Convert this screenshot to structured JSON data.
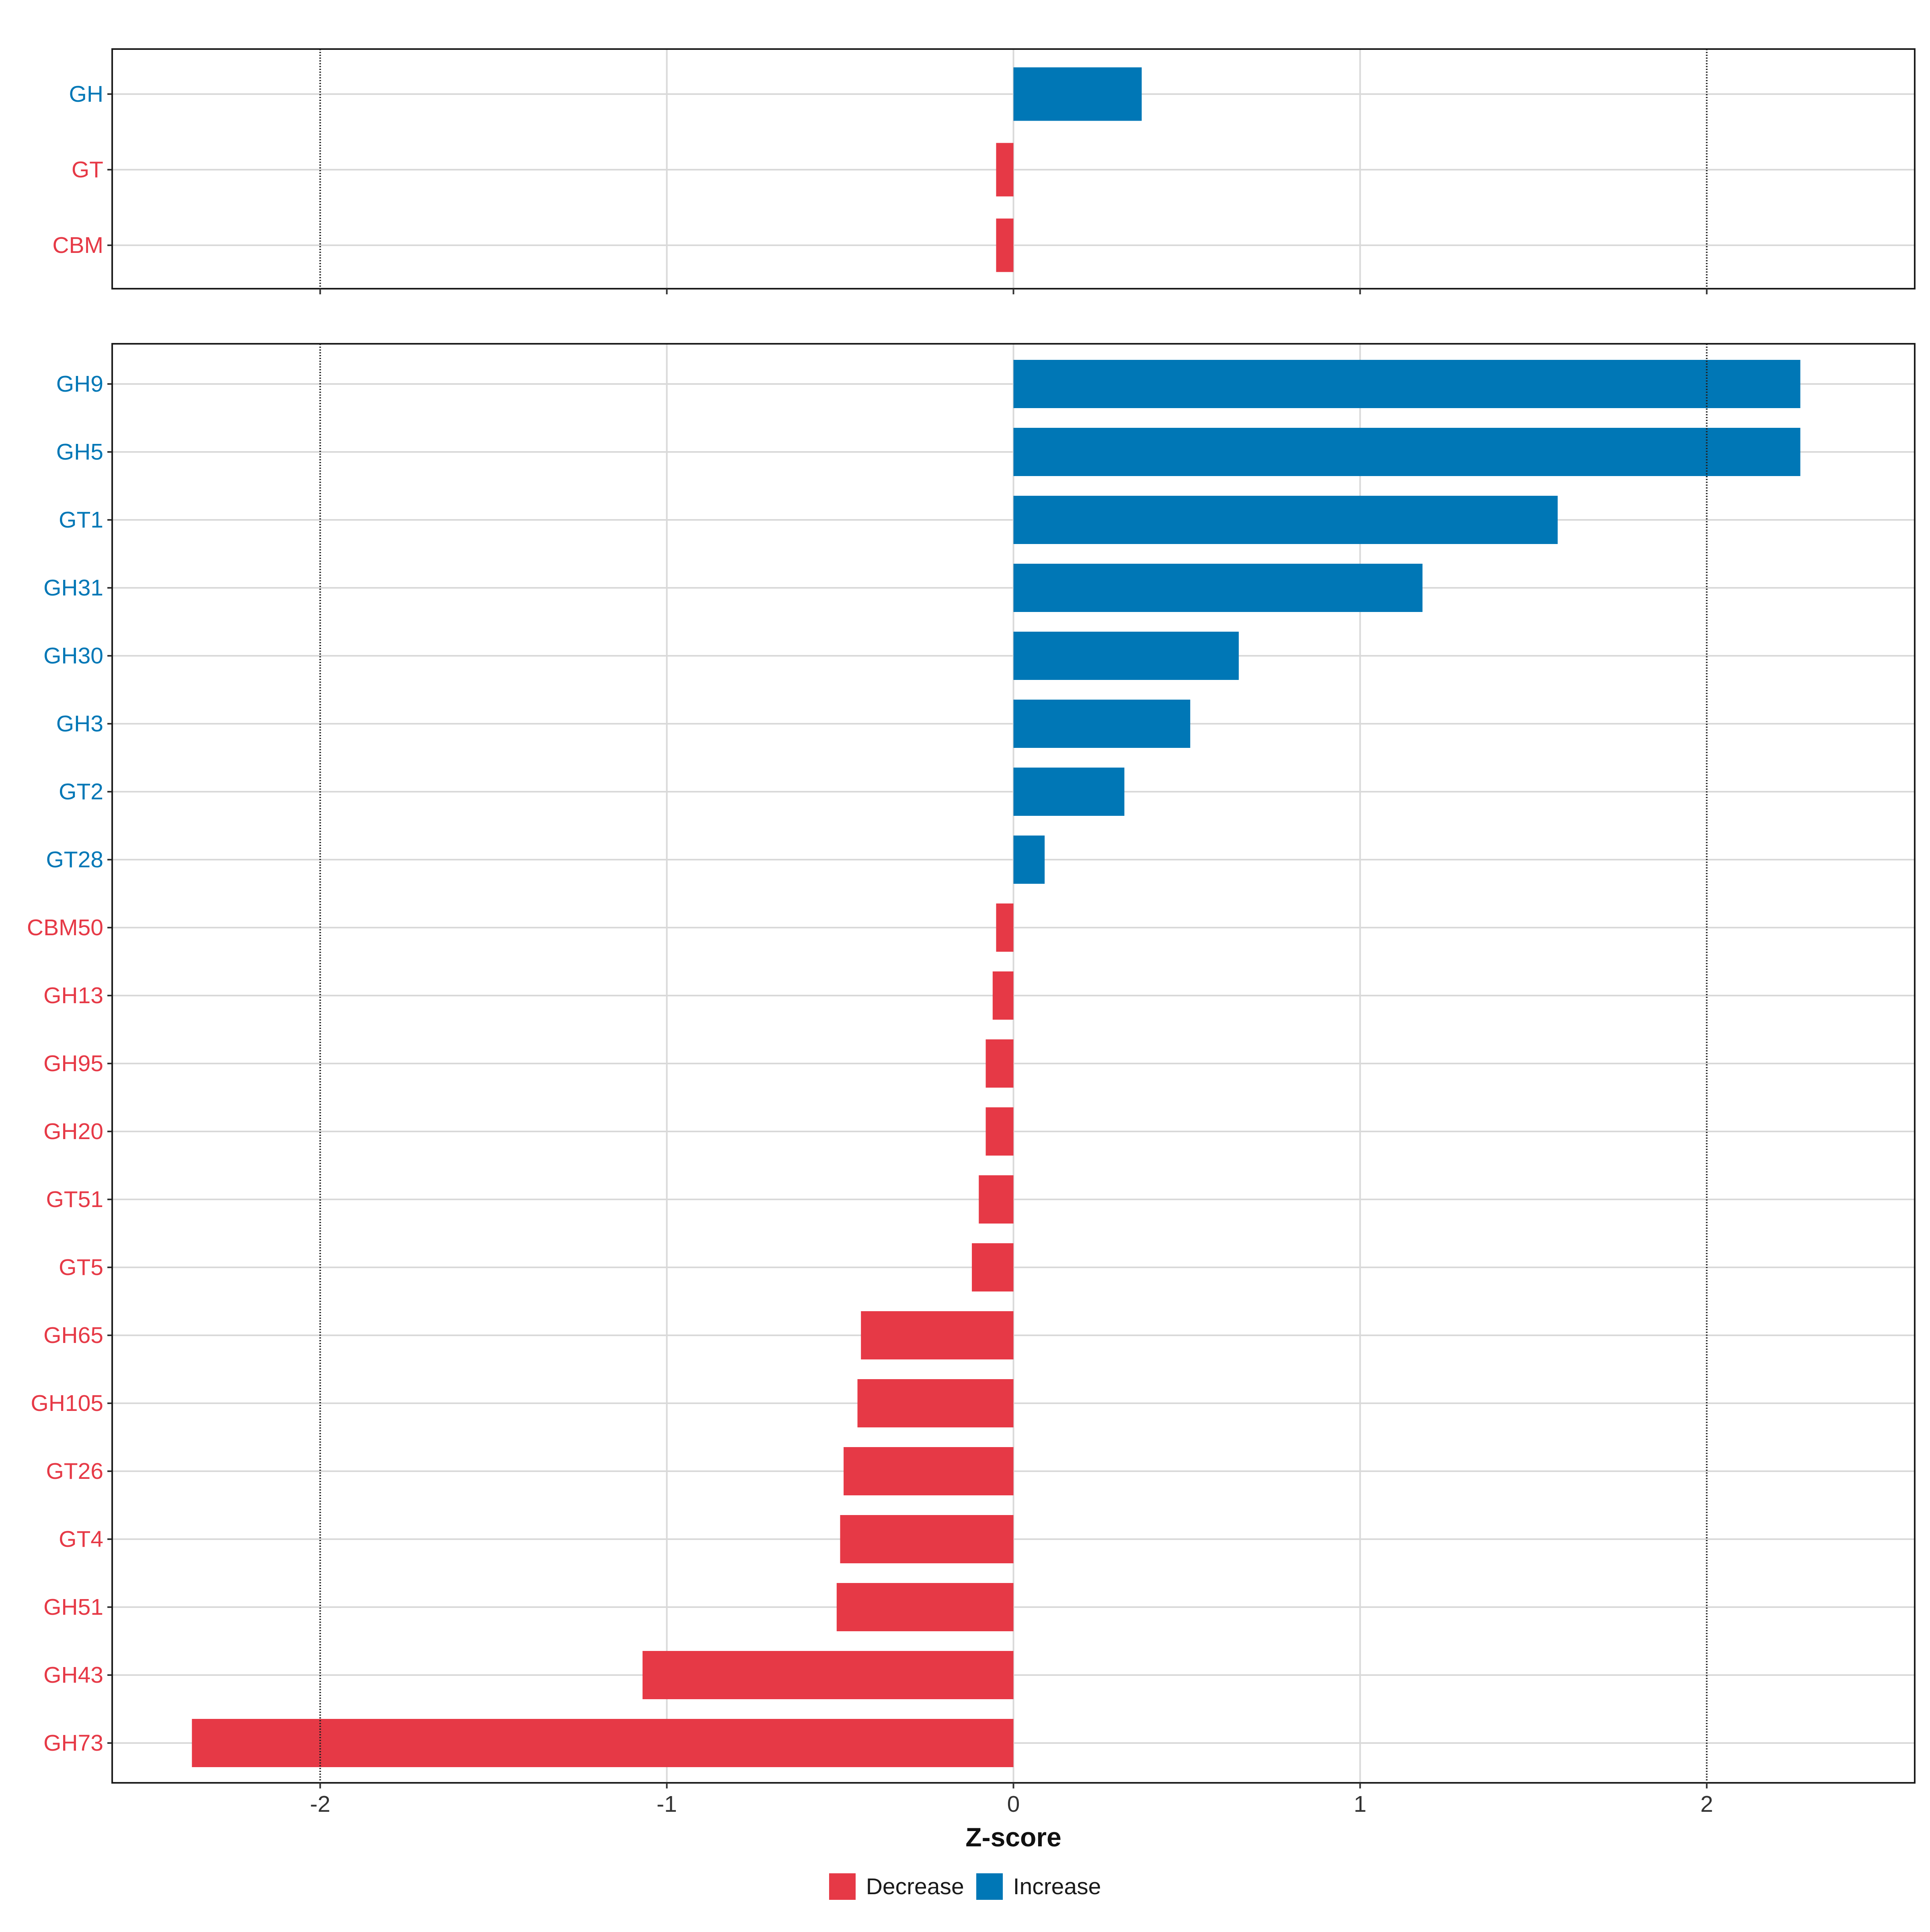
{
  "chart_data": {
    "type": "bar",
    "orientation": "horizontal",
    "xlabel": "Z-score",
    "xlim": [
      -2.6,
      2.6
    ],
    "x_ticks": [
      -2,
      -1,
      0,
      1,
      2
    ],
    "x_tick_labels": [
      "-2",
      "-1",
      "0",
      "1",
      "2"
    ],
    "reference_lines": [
      -2,
      2
    ],
    "grid": true,
    "legend": {
      "placement": "bottom",
      "entries": [
        {
          "label": "Decrease",
          "color": "#E63946"
        },
        {
          "label": "Increase",
          "color": "#0077B6"
        }
      ]
    },
    "panels": [
      {
        "name": "top",
        "bars": [
          {
            "category": "GH",
            "value": 0.37,
            "group": "Increase"
          },
          {
            "category": "GT",
            "value": -0.05,
            "group": "Decrease"
          },
          {
            "category": "CBM",
            "value": -0.05,
            "group": "Decrease"
          }
        ]
      },
      {
        "name": "bottom",
        "bars": [
          {
            "category": "GH9",
            "value": 2.27,
            "group": "Increase"
          },
          {
            "category": "GH5",
            "value": 2.27,
            "group": "Increase"
          },
          {
            "category": "GT1",
            "value": 1.57,
            "group": "Increase"
          },
          {
            "category": "GH31",
            "value": 1.18,
            "group": "Increase"
          },
          {
            "category": "GH30",
            "value": 0.65,
            "group": "Increase"
          },
          {
            "category": "GH3",
            "value": 0.51,
            "group": "Increase"
          },
          {
            "category": "GT2",
            "value": 0.32,
            "group": "Increase"
          },
          {
            "category": "GT28",
            "value": 0.09,
            "group": "Increase"
          },
          {
            "category": "CBM50",
            "value": -0.05,
            "group": "Decrease"
          },
          {
            "category": "GH13",
            "value": -0.06,
            "group": "Decrease"
          },
          {
            "category": "GH95",
            "value": -0.08,
            "group": "Decrease"
          },
          {
            "category": "GH20",
            "value": -0.08,
            "group": "Decrease"
          },
          {
            "category": "GT51",
            "value": -0.1,
            "group": "Decrease"
          },
          {
            "category": "GT5",
            "value": -0.12,
            "group": "Decrease"
          },
          {
            "category": "GH65",
            "value": -0.44,
            "group": "Decrease"
          },
          {
            "category": "GH105",
            "value": -0.45,
            "group": "Decrease"
          },
          {
            "category": "GT26",
            "value": -0.49,
            "group": "Decrease"
          },
          {
            "category": "GT4",
            "value": -0.5,
            "group": "Decrease"
          },
          {
            "category": "GH51",
            "value": -0.51,
            "group": "Decrease"
          },
          {
            "category": "GH43",
            "value": -1.07,
            "group": "Decrease"
          },
          {
            "category": "GH73",
            "value": -2.37,
            "group": "Decrease"
          }
        ]
      }
    ]
  }
}
